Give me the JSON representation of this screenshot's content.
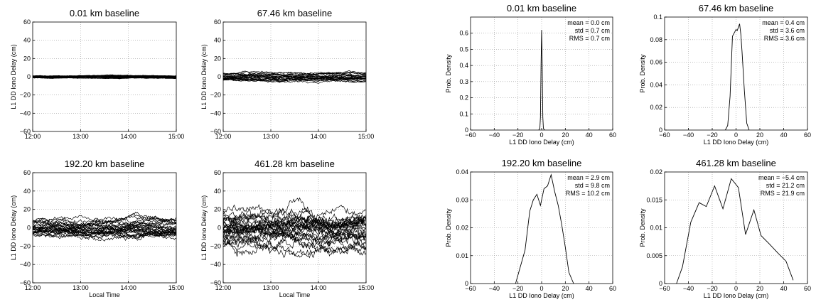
{
  "chart_data": [
    {
      "id": "ts1",
      "type": "line",
      "title": "0.01 km baseline",
      "xlabel": "",
      "ylabel": "L1 DD Iono Delay (cm)",
      "xlim": [
        0,
        180
      ],
      "ylim": [
        -60,
        60
      ],
      "xticks": [
        0,
        60,
        120,
        180
      ],
      "xtick_labels": [
        "12:00",
        "13:00",
        "14:00",
        "15:00"
      ],
      "yticks": [
        -60,
        -40,
        -20,
        0,
        20,
        40,
        60
      ],
      "grid": true,
      "n_series": 10,
      "spread_cm": 1.5
    },
    {
      "id": "ts2",
      "type": "line",
      "title": "67.46 km baseline",
      "xlabel": "",
      "ylabel": "L1 DD Iono Delay (cm)",
      "xlim": [
        0,
        180
      ],
      "ylim": [
        -60,
        60
      ],
      "xticks": [
        0,
        60,
        120,
        180
      ],
      "xtick_labels": [
        "12:00",
        "13:00",
        "14:00",
        "15:00"
      ],
      "yticks": [
        -60,
        -40,
        -20,
        0,
        20,
        40,
        60
      ],
      "grid": true,
      "n_series": 24,
      "spread_cm": 5
    },
    {
      "id": "ts3",
      "type": "line",
      "title": "192.20 km baseline",
      "xlabel": "Local Time",
      "ylabel": "L1 DD Iono Delay (cm)",
      "xlim": [
        0,
        180
      ],
      "ylim": [
        -60,
        60
      ],
      "xticks": [
        0,
        60,
        120,
        180
      ],
      "xtick_labels": [
        "12:00",
        "13:00",
        "14:00",
        "15:00"
      ],
      "yticks": [
        -60,
        -40,
        -20,
        0,
        20,
        40,
        60
      ],
      "grid": true,
      "n_series": 30,
      "spread_cm": 11
    },
    {
      "id": "ts4",
      "type": "line",
      "title": "461.28 km baseline",
      "xlabel": "Local Time",
      "ylabel": "L1 DD Iono Delay (cm)",
      "xlim": [
        0,
        180
      ],
      "ylim": [
        -60,
        60
      ],
      "xticks": [
        0,
        60,
        120,
        180
      ],
      "xtick_labels": [
        "12:00",
        "13:00",
        "14:00",
        "15:00"
      ],
      "yticks": [
        -60,
        -40,
        -20,
        0,
        20,
        40,
        60
      ],
      "grid": true,
      "n_series": 28,
      "spread_cm": 24
    },
    {
      "id": "h1",
      "type": "line",
      "title": "0.01 km baseline",
      "xlabel": "L1 DD Iono Delay (cm)",
      "ylabel": "Prob. Density",
      "xlim": [
        -60,
        60
      ],
      "ylim": [
        0,
        0.7
      ],
      "xticks": [
        -60,
        -40,
        -20,
        0,
        20,
        40,
        60
      ],
      "yticks": [
        0,
        0.1,
        0.2,
        0.3,
        0.4,
        0.5,
        0.6
      ],
      "ytick_labels": [
        "0",
        "0.1",
        "0.2",
        "0.3",
        "0.4",
        "0.5",
        "0.6"
      ],
      "grid": true,
      "stats": [
        "mean = 0.0 cm",
        "std = 0.7 cm",
        "RMS = 0.7 cm"
      ],
      "x": [
        -2.5,
        -1.5,
        -1,
        -0.5,
        0,
        0.5,
        1,
        1.5,
        2.5
      ],
      "y": [
        0,
        0.01,
        0.08,
        0.4,
        0.62,
        0.4,
        0.08,
        0.01,
        0
      ]
    },
    {
      "id": "h2",
      "type": "line",
      "title": "67.46 km baseline",
      "xlabel": "L1 DD Iono Delay (cm)",
      "ylabel": "Prob. Density",
      "xlim": [
        -60,
        60
      ],
      "ylim": [
        0,
        0.1
      ],
      "xticks": [
        -60,
        -40,
        -20,
        0,
        20,
        40,
        60
      ],
      "yticks": [
        0,
        0.02,
        0.04,
        0.06,
        0.08,
        0.1
      ],
      "ytick_labels": [
        "0",
        "0.02",
        "0.04",
        "0.06",
        "0.08",
        "0.1"
      ],
      "grid": true,
      "stats": [
        "mean = 0.4 cm",
        "std = 3.6 cm",
        "RMS = 3.6 cm"
      ],
      "x": [
        -9,
        -7,
        -5,
        -3,
        -1,
        0,
        1,
        2,
        3,
        4,
        5,
        7,
        9,
        11
      ],
      "y": [
        0,
        0.004,
        0.03,
        0.083,
        0.087,
        0.089,
        0.088,
        0.091,
        0.094,
        0.085,
        0.07,
        0.035,
        0.006,
        0
      ]
    },
    {
      "id": "h3",
      "type": "line",
      "title": "192.20 km baseline",
      "xlabel": "L1 DD Iono Delay (cm)",
      "ylabel": "Prob. Density",
      "xlim": [
        -60,
        60
      ],
      "ylim": [
        0,
        0.04
      ],
      "xticks": [
        -60,
        -40,
        -20,
        0,
        20,
        40,
        60
      ],
      "yticks": [
        0,
        0.01,
        0.02,
        0.03,
        0.04
      ],
      "ytick_labels": [
        "0",
        "0.01",
        "0.02",
        "0.03",
        "0.04"
      ],
      "grid": true,
      "stats": [
        "mean = 2.9 cm",
        "std = 9.8 cm",
        "RMS = 10.2 cm"
      ],
      "x": [
        -22,
        -18,
        -14,
        -10,
        -7,
        -4,
        -1,
        2,
        5,
        8,
        11,
        14,
        17,
        20,
        23,
        27
      ],
      "y": [
        0,
        0.006,
        0.012,
        0.026,
        0.03,
        0.032,
        0.028,
        0.034,
        0.035,
        0.039,
        0.033,
        0.028,
        0.021,
        0.013,
        0.004,
        0
      ]
    },
    {
      "id": "h4",
      "type": "line",
      "title": "461.28 km baseline",
      "xlabel": "L1 DD Iono Delay (cm)",
      "ylabel": "Prob. Density",
      "xlim": [
        -60,
        60
      ],
      "ylim": [
        0,
        0.02
      ],
      "xticks": [
        -60,
        -40,
        -20,
        0,
        20,
        40,
        60
      ],
      "yticks": [
        0,
        0.005,
        0.01,
        0.015,
        0.02
      ],
      "ytick_labels": [
        "0",
        "0.005",
        "0.01",
        "0.015",
        "0.02"
      ],
      "grid": true,
      "stats": [
        "mean = −5.4 cm",
        "std = 21.2 cm",
        "RMS = 21.9 cm"
      ],
      "x": [
        -50,
        -45,
        -38,
        -31,
        -25,
        -18,
        -11,
        -4,
        2,
        8,
        15,
        21,
        28,
        35,
        42,
        48
      ],
      "y": [
        0,
        0.003,
        0.011,
        0.0145,
        0.0138,
        0.0175,
        0.0134,
        0.0188,
        0.0172,
        0.0088,
        0.0132,
        0.0086,
        0.0071,
        0.0055,
        0.004,
        0.0006
      ]
    }
  ]
}
